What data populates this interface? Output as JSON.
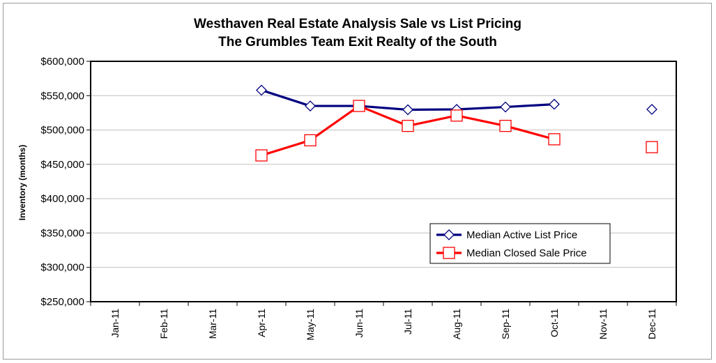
{
  "chart_data": {
    "type": "line",
    "title": [
      "Westhaven Real Estate Analysis Sale vs List Pricing",
      "The Grumbles Team Exit Realty of the South"
    ],
    "ylabel": "Inventory (months)",
    "xlabel": "",
    "categories": [
      "Jan-11",
      "Feb-11",
      "Mar-11",
      "Apr-11",
      "May-11",
      "Jun-11",
      "Jul-11",
      "Aug-11",
      "Sep-11",
      "Oct-11",
      "Nov-11",
      "Dec-11"
    ],
    "ylim": [
      250000,
      600000
    ],
    "ytick_values": [
      250000,
      300000,
      350000,
      400000,
      450000,
      500000,
      550000,
      600000
    ],
    "ytick_labels": [
      "$250,000",
      "$300,000",
      "$350,000",
      "$400,000",
      "$450,000",
      "$500,000",
      "$550,000",
      "$600,000"
    ],
    "grid": true,
    "legend_position": "bottom-right",
    "series": [
      {
        "name": "Median Active List Price",
        "color": "#000080",
        "marker": "diamond",
        "values": [
          null,
          null,
          null,
          558000,
          535000,
          535000,
          529500,
          530000,
          533500,
          537500,
          null,
          530000
        ]
      },
      {
        "name": "Median Closed Sale Price",
        "color": "#ff0000",
        "marker": "square",
        "values": [
          null,
          null,
          null,
          463000,
          485000,
          535000,
          506000,
          521000,
          506000,
          486500,
          null,
          475000
        ]
      }
    ]
  }
}
